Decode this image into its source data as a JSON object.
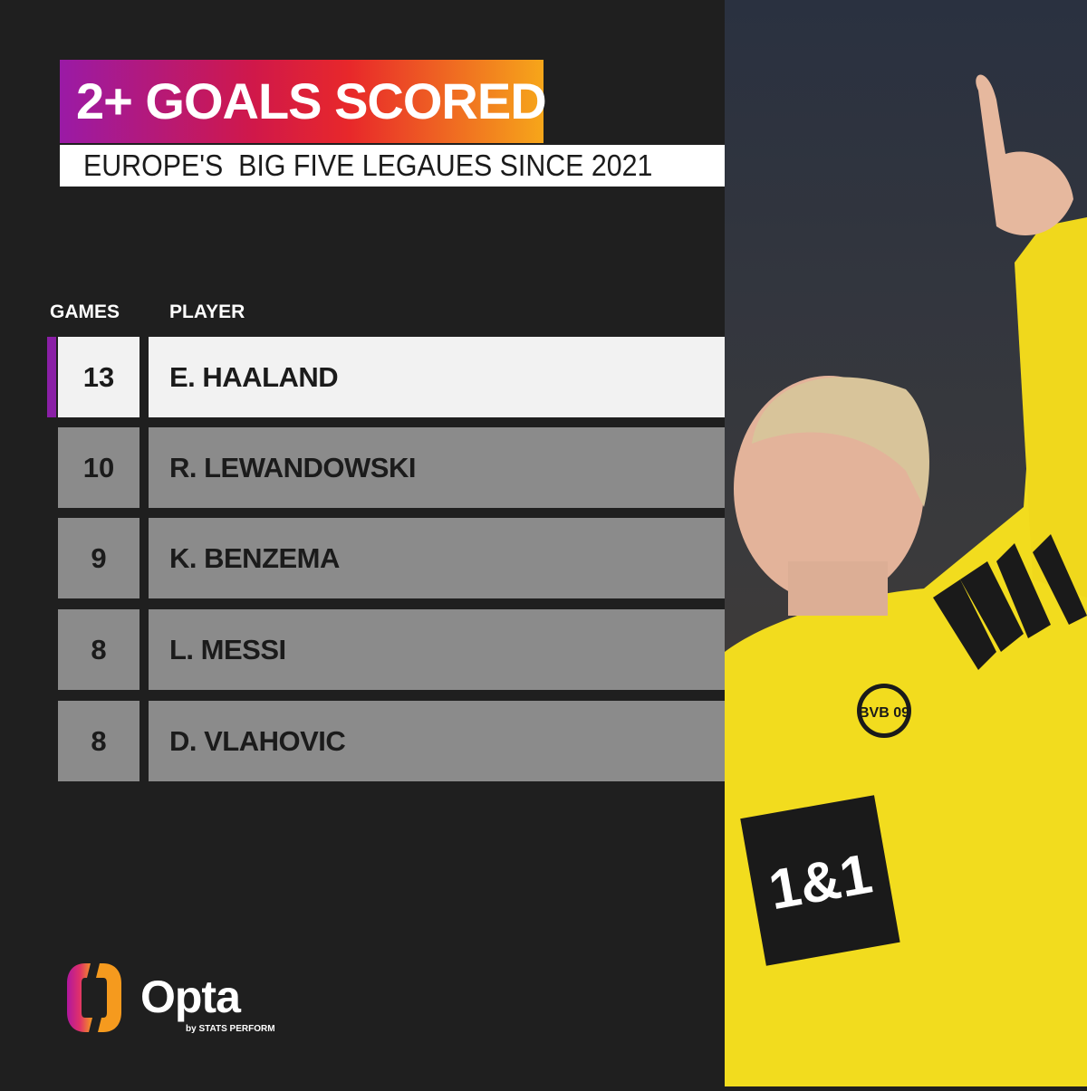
{
  "title": "2+ GOALS SCORED",
  "subtitle": "EUROPE'S  BIG FIVE LEGAUES SINCE 2021",
  "table": {
    "headers": {
      "games": "GAMES",
      "player": "PLAYER"
    },
    "rows": [
      {
        "games": "13",
        "player": "E. HAALAND",
        "highlight": true
      },
      {
        "games": "10",
        "player": "R. LEWANDOWSKI"
      },
      {
        "games": "9",
        "player": "K. BENZEMA"
      },
      {
        "games": "8",
        "player": "L. MESSI"
      },
      {
        "games": "8",
        "player": "D. VLAHOVIC"
      }
    ]
  },
  "brand": {
    "name": "Opta",
    "tagline": "by STATS PERFORM"
  },
  "photo": {
    "sponsor": "1&1",
    "crest": "BVB 09"
  },
  "colors": {
    "background": "#1f1f1f",
    "highlight": "#8a1fa6",
    "row": "#8b8b8b",
    "jersey": "#f2dc1e"
  }
}
